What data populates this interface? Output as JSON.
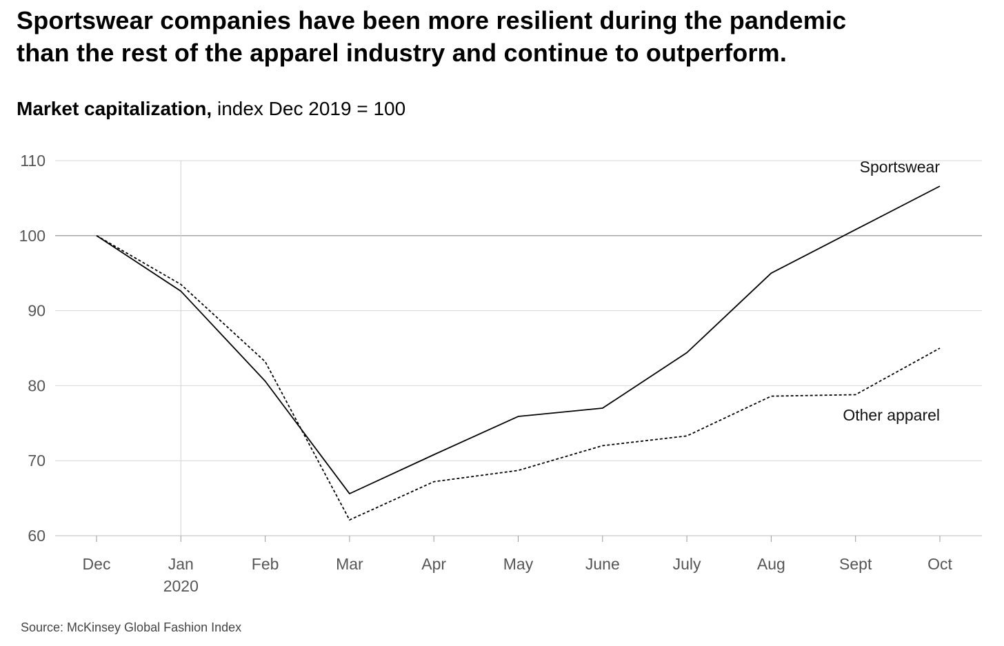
{
  "title_lines": [
    "Sportswear companies have been more resilient during the pandemic",
    "than the rest of the apparel industry and continue to outperform."
  ],
  "subtitle": {
    "bold": "Market capitalization,",
    "rest": " index Dec 2019 = 100"
  },
  "source": "Source: McKinsey Global Fashion Index",
  "chart_data": {
    "type": "line",
    "title": "Market capitalization, index Dec 2019 = 100",
    "categories": [
      "Dec",
      "Jan",
      "Feb",
      "Mar",
      "Apr",
      "May",
      "June",
      "July",
      "Aug",
      "Sept",
      "Oct"
    ],
    "category_sublabels": [
      "",
      "2020",
      "",
      "",
      "",
      "",
      "",
      "",
      "",
      "",
      ""
    ],
    "ylim": [
      60,
      110
    ],
    "yticks": [
      60,
      70,
      80,
      90,
      100,
      110
    ],
    "grid": "horizontal",
    "reference_line": 100,
    "series": [
      {
        "name": "Sportswear",
        "style": "solid",
        "color": "#000000",
        "values": [
          100,
          92.6,
          80.6,
          65.6,
          70.8,
          75.9,
          77.0,
          84.4,
          95.0,
          100.8,
          106.6
        ]
      },
      {
        "name": "Other apparel",
        "style": "dashed",
        "color": "#000000",
        "values": [
          100,
          93.5,
          83.2,
          62.1,
          67.2,
          68.7,
          72.0,
          73.3,
          78.6,
          78.8,
          85.0
        ]
      }
    ]
  }
}
